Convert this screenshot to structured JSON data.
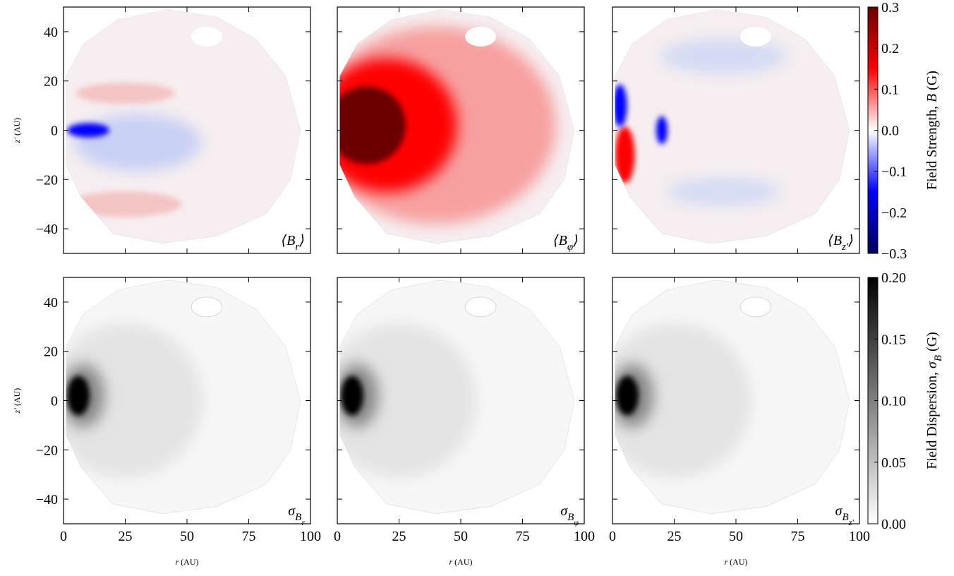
{
  "chart_data": {
    "type": "heatmap",
    "xlabel": [
      {
        "text": "r",
        "style": "italic"
      },
      {
        "text": " (AU)",
        "style": "normal"
      }
    ],
    "ylabel": [
      {
        "text": "z′",
        "style": "italic"
      },
      {
        "text": " (AU)",
        "style": "normal"
      }
    ],
    "xlim": [
      0,
      100
    ],
    "xticks": [
      0,
      25,
      50,
      75,
      100
    ],
    "ylim": [
      -50,
      50
    ],
    "yticks": [
      {
        "value": -40,
        "label": "−40"
      },
      {
        "value": -20,
        "label": "−20"
      },
      0,
      20,
      40
    ],
    "panels": [
      {
        "colorbar": 0,
        "component": "r",
        "label": [
          {
            "text": "⟨B",
            "level": 0
          },
          {
            "text": "r",
            "level": 1
          },
          {
            "text": "⟩",
            "level": 0
          }
        ]
      },
      {
        "colorbar": 0,
        "component": "phi",
        "label": [
          {
            "text": "⟨B",
            "level": 0
          },
          {
            "text": "φ",
            "level": 1
          },
          {
            "text": "⟩",
            "level": 0
          }
        ]
      },
      {
        "colorbar": 0,
        "component": "z",
        "label": [
          {
            "text": "⟨B",
            "level": 0
          },
          {
            "text": "z′",
            "level": 1
          },
          {
            "text": "⟩",
            "level": 0
          }
        ]
      },
      {
        "colorbar": 1,
        "component": "r",
        "label": [
          {
            "text": "σ",
            "level": 0
          },
          {
            "text": "B",
            "level": 1
          },
          {
            "text": "r",
            "level": 2
          }
        ]
      },
      {
        "colorbar": 1,
        "component": "phi",
        "label": [
          {
            "text": "σ",
            "level": 0
          },
          {
            "text": "B",
            "level": 1
          },
          {
            "text": "φ",
            "level": 2
          }
        ]
      },
      {
        "colorbar": 1,
        "component": "z",
        "label": [
          {
            "text": "σ",
            "level": 0
          },
          {
            "text": "B",
            "level": 1
          },
          {
            "text": "z′",
            "level": 2
          }
        ]
      }
    ],
    "colorbars": [
      {
        "cmap": [
          "#00005a",
          "#0000ff",
          "#ffffff",
          "#ff0000",
          "#6a0000"
        ],
        "clim": [
          -0.3,
          0.3
        ],
        "ticks": [
          {
            "value": -0.3,
            "label": "−0.3"
          },
          {
            "value": -0.2,
            "label": "−0.2"
          },
          {
            "value": -0.1,
            "label": "−0.1"
          },
          {
            "value": 0,
            "label": "0.0"
          },
          0.1,
          0.2,
          0.3
        ],
        "label": [
          {
            "text": "Field Strength, ",
            "level": 0
          },
          {
            "text": "B",
            "level": 0,
            "style": "italic"
          },
          {
            "text": " (G)",
            "level": 0
          }
        ]
      },
      {
        "cmap": [
          "#ffffff",
          "#000000"
        ],
        "clim": [
          0,
          0.2
        ],
        "ticks": [
          {
            "value": 0,
            "label": "0.00"
          },
          {
            "value": 0.05,
            "label": "0.05"
          },
          {
            "value": 0.1,
            "label": "0.10"
          },
          {
            "value": 0.15,
            "label": "0.15"
          },
          {
            "value": 0.2,
            "label": "0.20"
          }
        ],
        "label": [
          {
            "text": "Field Dispersion, ",
            "level": 0
          },
          {
            "text": "σ",
            "level": 0,
            "style": "italic"
          },
          {
            "text": "B",
            "level": 1,
            "style": "italic"
          },
          {
            "text": " (G)",
            "level": 0
          }
        ]
      }
    ]
  }
}
